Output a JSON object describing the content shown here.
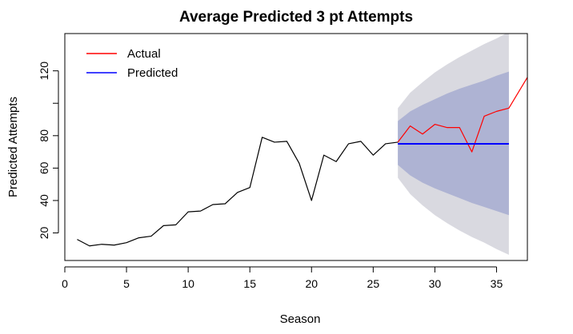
{
  "chart_data": {
    "type": "line",
    "title": "Average Predicted 3 pt Attempts",
    "xlabel": "Season",
    "ylabel": "Predicted Attempts",
    "xlim": [
      0,
      37.5
    ],
    "ylim": [
      3,
      143
    ],
    "xticks": [
      0,
      5,
      10,
      15,
      20,
      25,
      30,
      35
    ],
    "yticks": [
      20,
      40,
      60,
      80,
      100,
      120
    ],
    "ytick_labels_shown": [
      "20",
      "40",
      "60",
      "80",
      "120"
    ],
    "grid": false,
    "legend": {
      "position": "top-left",
      "entries": [
        {
          "label": "Actual",
          "color": "#ff0000"
        },
        {
          "label": "Predicted",
          "color": "#0000ff"
        }
      ]
    },
    "colors": {
      "history": "#000000",
      "actual": "#ff0000",
      "predicted": "#0000ff",
      "band_outer": "#d9d9e0",
      "band_inner": "#aeb3d3"
    },
    "series": [
      {
        "x": [
          1,
          2,
          3,
          4,
          5,
          6,
          7,
          8,
          9,
          10,
          11,
          12,
          13,
          14,
          15,
          16,
          17,
          18,
          19,
          20,
          21,
          22,
          23,
          24,
          25,
          26,
          27
        ],
        "values": [
          16,
          12,
          13,
          12.5,
          14,
          17,
          18,
          24.5,
          25,
          33,
          33.5,
          37.5,
          38,
          45,
          48,
          79,
          76,
          76.5,
          63,
          40,
          68,
          64,
          75,
          76.5,
          68,
          75,
          76
        ]
      },
      {
        "name": "Actual",
        "x": [
          27,
          28,
          29,
          30,
          31,
          32,
          33,
          34,
          35,
          36,
          37.5
        ],
        "values": [
          76,
          86,
          81,
          87,
          85,
          85,
          70,
          92,
          95,
          97,
          116
        ]
      },
      {
        "name": "Predicted",
        "x": [
          27,
          36
        ],
        "values": [
          75,
          75
        ]
      }
    ],
    "intervals": {
      "x": [
        27,
        28,
        29,
        30,
        31,
        32,
        33,
        34,
        35,
        36
      ],
      "inner_upper": [
        89,
        95,
        99,
        102.5,
        106,
        109,
        111.5,
        114,
        117,
        119.5
      ],
      "inner_lower": [
        62,
        55.5,
        51,
        47.5,
        44.5,
        41.5,
        38.5,
        36,
        33.5,
        31
      ],
      "outer_upper": [
        97,
        106.5,
        113,
        119,
        124,
        128.5,
        132.5,
        136.5,
        140,
        144
      ],
      "outer_lower": [
        54,
        44,
        37,
        31,
        26,
        21.5,
        17.5,
        14,
        10,
        6.5
      ]
    }
  }
}
